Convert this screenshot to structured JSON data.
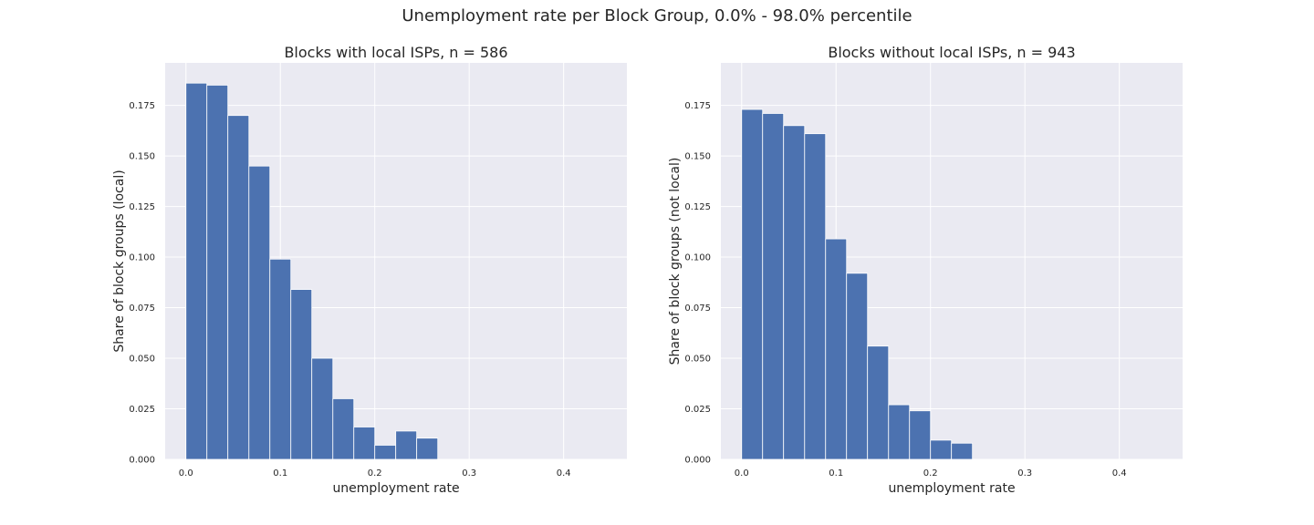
{
  "suptitle": "Unemployment rate per Block Group, 0.0% - 98.0% percentile",
  "colors": {
    "bar": "#4c72b0",
    "bar_edge": "#ffffff",
    "axes_bg": "#eaeaf2",
    "grid": "#ffffff",
    "text": "#262626"
  },
  "chart_data": [
    {
      "type": "bar",
      "subtype": "histogram",
      "title": "Blocks with local ISPs, n = 586",
      "xlabel": "unemployment rate",
      "ylabel": "Share of block groups (local)",
      "xlim": [
        -0.022,
        0.467
      ],
      "ylim": [
        0,
        0.196
      ],
      "xticks": [
        0.0,
        0.1,
        0.2,
        0.3,
        0.4
      ],
      "xtick_labels": [
        "0.0",
        "0.1",
        "0.2",
        "0.3",
        "0.4"
      ],
      "yticks": [
        0.0,
        0.025,
        0.05,
        0.075,
        0.1,
        0.125,
        0.15,
        0.175
      ],
      "ytick_labels": [
        "0.000",
        "0.025",
        "0.050",
        "0.075",
        "0.100",
        "0.125",
        "0.150",
        "0.175"
      ],
      "grid": true,
      "bin_edges": [
        0.0,
        0.0222,
        0.0444,
        0.0667,
        0.0889,
        0.1111,
        0.1333,
        0.1556,
        0.1778,
        0.2,
        0.2222,
        0.2444,
        0.2667
      ],
      "values": [
        0.186,
        0.185,
        0.17,
        0.145,
        0.099,
        0.084,
        0.05,
        0.03,
        0.016,
        0.007,
        0.014,
        0.0105
      ]
    },
    {
      "type": "bar",
      "subtype": "histogram",
      "title": "Blocks without local ISPs, n = 943",
      "xlabel": "unemployment rate",
      "ylabel": "Share of block groups (not local)",
      "xlim": [
        -0.022,
        0.467
      ],
      "ylim": [
        0,
        0.196
      ],
      "xticks": [
        0.0,
        0.1,
        0.2,
        0.3,
        0.4
      ],
      "xtick_labels": [
        "0.0",
        "0.1",
        "0.2",
        "0.3",
        "0.4"
      ],
      "yticks": [
        0.0,
        0.025,
        0.05,
        0.075,
        0.1,
        0.125,
        0.15,
        0.175
      ],
      "ytick_labels": [
        "0.000",
        "0.025",
        "0.050",
        "0.075",
        "0.100",
        "0.125",
        "0.150",
        "0.175"
      ],
      "grid": true,
      "bin_edges": [
        0.0,
        0.0222,
        0.0444,
        0.0667,
        0.0889,
        0.1111,
        0.1333,
        0.1556,
        0.1778,
        0.2,
        0.2222,
        0.2444
      ],
      "values": [
        0.173,
        0.171,
        0.165,
        0.161,
        0.109,
        0.092,
        0.056,
        0.027,
        0.024,
        0.0095,
        0.008
      ]
    }
  ]
}
